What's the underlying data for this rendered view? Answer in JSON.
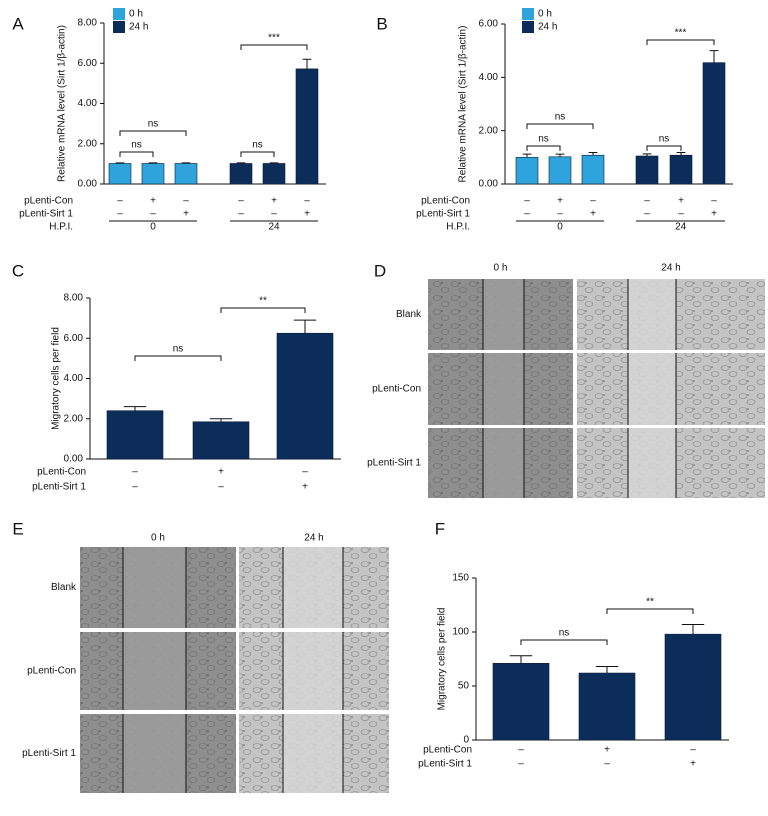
{
  "chart_data": [
    {
      "type": "bar",
      "panel_label": "A",
      "y_label": "Relative mRNA level (Sirt 1/β-actin)",
      "ylim": [
        0,
        8
      ],
      "yticks": [
        {
          "value": 0,
          "label": "0.00"
        },
        {
          "value": 2,
          "label": "2.00"
        },
        {
          "value": 4,
          "label": "4.00"
        },
        {
          "value": 6,
          "label": "6.00"
        },
        {
          "value": 8,
          "label": "8.00"
        }
      ],
      "series": [
        {
          "name": "0 h",
          "color": "#2ea3dc",
          "values": [
            1.02,
            1.02,
            1.02
          ],
          "errors": [
            0.03,
            0.03,
            0.03
          ]
        },
        {
          "name": "24 h",
          "color": "#0c2c5a",
          "values": [
            1.02,
            1.02,
            5.72
          ],
          "errors": [
            0.03,
            0.03,
            0.48
          ]
        }
      ],
      "annotations": [
        "ns",
        "ns",
        "ns",
        "***"
      ],
      "rows": [
        {
          "label": "pLenti-Con",
          "cells": [
            "–",
            "+",
            "–",
            "–",
            "+",
            "–"
          ]
        },
        {
          "label": "pLenti-Sirt 1",
          "cells": [
            "–",
            "–",
            "+",
            "–",
            "–",
            "+"
          ]
        },
        {
          "label": "H.P.I.",
          "cells": [
            "0",
            "24"
          ]
        }
      ]
    },
    {
      "type": "bar",
      "panel_label": "B",
      "y_label": "Relative mRNA level (Sirt 1/β-actin)",
      "ylim": [
        0,
        6
      ],
      "yticks": [
        {
          "value": 0,
          "label": "0.00"
        },
        {
          "value": 2,
          "label": "2.00"
        },
        {
          "value": 4,
          "label": "4.00"
        },
        {
          "value": 6,
          "label": "6.00"
        }
      ],
      "series": [
        {
          "name": "0 h",
          "color": "#2ea3dc",
          "values": [
            1.0,
            1.02,
            1.08
          ],
          "errors": [
            0.12,
            0.1,
            0.1
          ]
        },
        {
          "name": "24 h",
          "color": "#0c2c5a",
          "values": [
            1.05,
            1.08,
            4.55
          ],
          "errors": [
            0.08,
            0.1,
            0.45
          ]
        }
      ],
      "annotations": [
        "ns",
        "ns",
        "ns",
        "***"
      ],
      "rows": [
        {
          "label": "pLenti-Con",
          "cells": [
            "–",
            "+",
            "–",
            "–",
            "+",
            "–"
          ]
        },
        {
          "label": "pLenti-Sirt 1",
          "cells": [
            "–",
            "–",
            "+",
            "–",
            "–",
            "+"
          ]
        },
        {
          "label": "H.P.I.",
          "cells": [
            "0",
            "24"
          ]
        }
      ]
    },
    {
      "type": "bar",
      "panel_label": "C",
      "y_label": "Migratory cells per field",
      "ylim": [
        0,
        8
      ],
      "yticks": [
        {
          "value": 0,
          "label": "0.00"
        },
        {
          "value": 2,
          "label": "2.00"
        },
        {
          "value": 4,
          "label": "4.00"
        },
        {
          "value": 6,
          "label": "6.00"
        },
        {
          "value": 8,
          "label": "8.00"
        }
      ],
      "color": "#0c2c5a",
      "values": [
        2.4,
        1.85,
        6.25
      ],
      "errors": [
        0.2,
        0.15,
        0.65
      ],
      "annotations": [
        "ns",
        "**"
      ],
      "rows": [
        {
          "label": "pLenti-Con",
          "cells": [
            "–",
            "+",
            "–"
          ]
        },
        {
          "label": "pLenti-Sirt 1",
          "cells": [
            "–",
            "–",
            "+"
          ]
        }
      ]
    },
    {
      "type": "bar",
      "panel_label": "F",
      "y_label": "Migratory cells per field",
      "ylim": [
        0,
        150
      ],
      "yticks": [
        0,
        50,
        100,
        150
      ],
      "color": "#0c2c5a",
      "values": [
        71,
        62,
        98
      ],
      "errors": [
        7,
        6,
        9
      ],
      "annotations": [
        "ns",
        "**"
      ],
      "rows": [
        {
          "label": "pLenti-Con",
          "cells": [
            "–",
            "+",
            "–"
          ]
        },
        {
          "label": "pLenti-Sirt 1",
          "cells": [
            "–",
            "–",
            "+"
          ]
        }
      ]
    }
  ],
  "image_panels": [
    {
      "panel_label": "D",
      "columns": [
        "0 h",
        "24 h"
      ],
      "rows": [
        "Blank",
        "pLenti-Con",
        "pLenti-Sirt 1"
      ]
    },
    {
      "panel_label": "E",
      "columns": [
        "0 h",
        "24 h"
      ],
      "rows": [
        "Blank",
        "pLenti-Con",
        "pLenti-Sirt 1"
      ]
    }
  ]
}
